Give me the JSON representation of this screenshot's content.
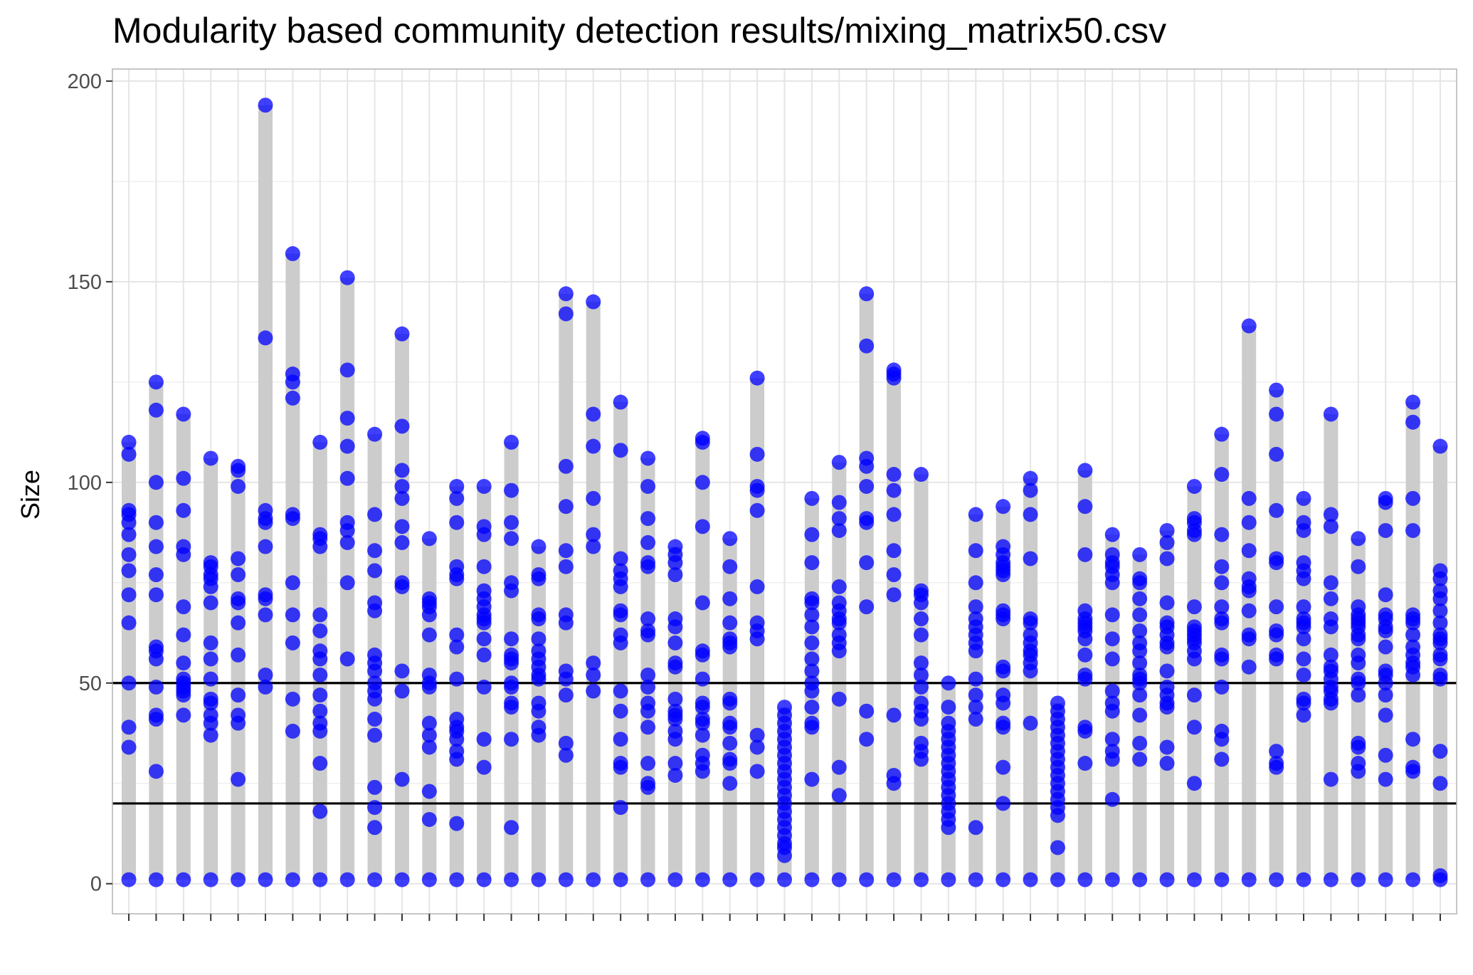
{
  "chart_data": {
    "type": "scatter",
    "title": "Modularity based community detection results/mixing_matrix50.csv",
    "xlabel": "",
    "ylabel": "Size",
    "ylim": [
      -7.5,
      203
    ],
    "yticks": [
      0,
      50,
      100,
      150,
      200
    ],
    "reference_lines": [
      50,
      20
    ],
    "grid": true,
    "legend": "none",
    "colors": {
      "point": "#0000ff",
      "range_bar": "#cccccc",
      "reference_line": "#000000",
      "grid": "#e5e5e5",
      "panel_border": "#b3b3b3"
    },
    "series": [
      [
        1,
        34,
        39,
        50,
        65,
        72,
        78,
        82,
        87,
        90,
        92,
        93,
        107,
        110
      ],
      [
        1,
        28,
        41,
        42,
        49,
        56,
        58,
        59,
        72,
        77,
        84,
        90,
        100,
        118,
        125
      ],
      [
        1,
        42,
        47,
        48,
        49,
        50,
        51,
        55,
        62,
        69,
        82,
        84,
        93,
        101,
        117
      ],
      [
        1,
        37,
        40,
        42,
        45,
        46,
        51,
        56,
        60,
        70,
        74,
        76,
        77,
        79,
        80,
        106
      ],
      [
        1,
        26,
        40,
        42,
        47,
        57,
        65,
        70,
        71,
        77,
        81,
        99,
        103,
        104
      ],
      [
        1,
        49,
        52,
        67,
        71,
        72,
        84,
        90,
        91,
        93,
        136,
        194
      ],
      [
        1,
        38,
        46,
        60,
        67,
        75,
        91,
        92,
        121,
        125,
        127,
        157
      ],
      [
        1,
        18,
        30,
        38,
        40,
        43,
        47,
        52,
        56,
        58,
        63,
        67,
        84,
        86,
        87,
        110
      ],
      [
        1,
        56,
        75,
        85,
        88,
        90,
        101,
        109,
        116,
        128,
        151
      ],
      [
        1,
        14,
        19,
        24,
        37,
        41,
        46,
        48,
        50,
        53,
        55,
        57,
        68,
        70,
        78,
        83,
        92,
        112
      ],
      [
        1,
        26,
        48,
        53,
        74,
        75,
        85,
        89,
        96,
        99,
        103,
        114,
        137
      ],
      [
        1,
        16,
        23,
        34,
        37,
        40,
        49,
        50,
        52,
        62,
        67,
        69,
        70,
        71,
        86
      ],
      [
        1,
        15,
        31,
        33,
        36,
        38,
        39,
        41,
        51,
        59,
        62,
        76,
        77,
        79,
        90,
        96,
        99
      ],
      [
        1,
        29,
        36,
        49,
        57,
        61,
        65,
        66,
        67,
        69,
        71,
        73,
        79,
        87,
        89,
        99
      ],
      [
        1,
        14,
        36,
        44,
        45,
        49,
        50,
        55,
        56,
        57,
        61,
        73,
        75,
        86,
        90,
        98,
        110
      ],
      [
        1,
        37,
        39,
        43,
        45,
        51,
        52,
        54,
        56,
        58,
        61,
        66,
        67,
        76,
        77,
        84
      ],
      [
        1,
        32,
        35,
        47,
        51,
        53,
        65,
        67,
        79,
        83,
        94,
        104,
        142,
        147
      ],
      [
        1,
        48,
        52,
        55,
        84,
        87,
        96,
        109,
        117,
        145
      ],
      [
        1,
        19,
        29,
        30,
        36,
        43,
        48,
        60,
        62,
        67,
        68,
        74,
        76,
        78,
        81,
        108,
        120
      ],
      [
        1,
        24,
        25,
        30,
        39,
        43,
        45,
        49,
        52,
        62,
        63,
        66,
        79,
        80,
        85,
        91,
        99,
        106
      ],
      [
        1,
        27,
        30,
        36,
        38,
        41,
        42,
        43,
        46,
        54,
        55,
        60,
        64,
        66,
        77,
        80,
        82,
        84
      ],
      [
        1,
        28,
        30,
        32,
        37,
        40,
        41,
        44,
        45,
        51,
        57,
        58,
        70,
        89,
        100,
        110,
        111
      ],
      [
        1,
        25,
        30,
        31,
        35,
        39,
        40,
        45,
        46,
        59,
        60,
        61,
        65,
        71,
        79,
        86
      ],
      [
        1,
        28,
        34,
        37,
        61,
        63,
        65,
        74,
        93,
        98,
        99,
        107,
        126
      ],
      [
        1,
        7,
        9,
        10,
        12,
        14,
        16,
        18,
        20,
        22,
        24,
        26,
        28,
        30,
        32,
        34,
        36,
        38,
        40,
        42,
        44
      ],
      [
        1,
        26,
        39,
        40,
        44,
        48,
        50,
        53,
        56,
        60,
        64,
        67,
        70,
        71,
        80,
        87,
        96
      ],
      [
        1,
        22,
        29,
        46,
        58,
        60,
        62,
        65,
        66,
        68,
        70,
        74,
        88,
        91,
        95,
        105
      ],
      [
        1,
        36,
        43,
        69,
        80,
        90,
        91,
        99,
        104,
        106,
        134,
        147
      ],
      [
        1,
        25,
        27,
        42,
        72,
        77,
        83,
        92,
        98,
        102,
        126,
        127,
        128
      ],
      [
        1,
        31,
        33,
        35,
        41,
        43,
        45,
        49,
        52,
        55,
        62,
        66,
        70,
        72,
        73,
        102
      ],
      [
        1,
        14,
        16,
        18,
        20,
        22,
        24,
        26,
        28,
        30,
        32,
        34,
        36,
        38,
        40,
        44,
        50
      ],
      [
        1,
        14,
        41,
        44,
        47,
        51,
        58,
        60,
        62,
        64,
        66,
        69,
        75,
        83,
        92
      ],
      [
        1,
        20,
        29,
        39,
        40,
        45,
        47,
        53,
        54,
        66,
        67,
        68,
        77,
        78,
        79,
        80,
        82,
        84,
        94
      ],
      [
        1,
        40,
        53,
        55,
        57,
        58,
        60,
        62,
        65,
        66,
        81,
        92,
        98,
        101
      ],
      [
        1,
        9,
        17,
        19,
        21,
        23,
        25,
        27,
        29,
        31,
        33,
        35,
        37,
        39,
        41,
        43,
        45
      ],
      [
        1,
        30,
        38,
        39,
        51,
        52,
        57,
        61,
        63,
        64,
        65,
        66,
        68,
        82,
        94,
        103
      ],
      [
        1,
        21,
        31,
        33,
        36,
        43,
        45,
        48,
        56,
        61,
        67,
        75,
        77,
        79,
        80,
        82,
        87
      ],
      [
        1,
        31,
        35,
        42,
        47,
        50,
        51,
        52,
        55,
        58,
        60,
        63,
        67,
        71,
        75,
        76,
        82
      ],
      [
        1,
        30,
        34,
        44,
        45,
        47,
        49,
        53,
        59,
        60,
        62,
        64,
        65,
        70,
        81,
        85,
        88
      ],
      [
        1,
        25,
        39,
        47,
        56,
        58,
        60,
        61,
        62,
        63,
        64,
        69,
        87,
        88,
        90,
        91,
        99
      ],
      [
        1,
        31,
        36,
        38,
        49,
        56,
        57,
        65,
        66,
        69,
        75,
        79,
        87,
        102,
        112
      ],
      [
        1,
        54,
        61,
        62,
        68,
        73,
        74,
        76,
        83,
        90,
        96,
        139
      ],
      [
        1,
        29,
        30,
        33,
        56,
        57,
        62,
        63,
        69,
        80,
        81,
        93,
        107,
        117,
        123
      ],
      [
        1,
        42,
        45,
        46,
        52,
        56,
        61,
        64,
        65,
        66,
        69,
        76,
        78,
        80,
        88,
        90,
        96
      ],
      [
        1,
        26,
        45,
        46,
        48,
        49,
        51,
        53,
        54,
        57,
        64,
        66,
        71,
        75,
        89,
        92,
        117
      ],
      [
        1,
        28,
        30,
        34,
        35,
        47,
        50,
        51,
        55,
        57,
        61,
        62,
        64,
        65,
        66,
        67,
        69,
        79,
        86
      ],
      [
        1,
        26,
        32,
        42,
        47,
        50,
        52,
        53,
        59,
        63,
        64,
        66,
        67,
        72,
        88,
        95,
        96
      ],
      [
        1,
        28,
        29,
        36,
        52,
        54,
        55,
        57,
        59,
        62,
        65,
        66,
        67,
        88,
        96,
        115,
        120
      ],
      [
        1,
        2,
        25,
        33,
        51,
        52,
        56,
        57,
        60,
        61,
        62,
        65,
        68,
        71,
        73,
        76,
        78,
        109
      ]
    ]
  }
}
